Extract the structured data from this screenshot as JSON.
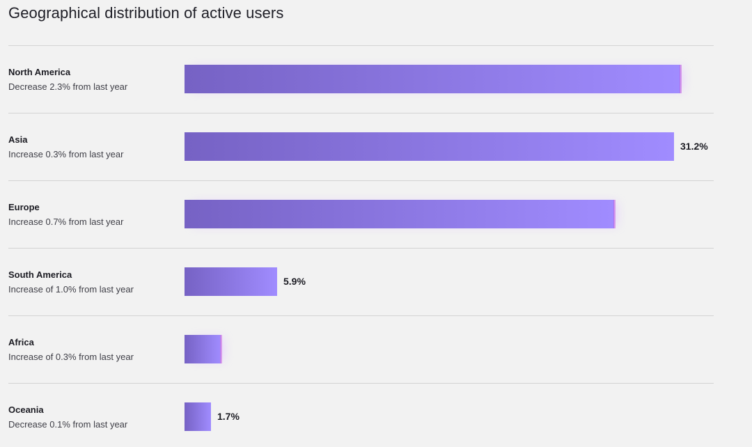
{
  "chart_data": {
    "type": "bar",
    "orientation": "horizontal",
    "title": "Geographical distribution of active users",
    "categories": [
      "North America",
      "Asia",
      "Europe",
      "South America",
      "Africa",
      "Oceania"
    ],
    "subtitles": [
      "Decrease 2.3% from last year",
      "Increase 0.3% from last year",
      "Increase 0.7% from last year",
      "Increase of 1.0% from last year",
      "Increase of 0.3% from last year",
      "Decrease 0.1% from last year"
    ],
    "values": [
      31.6,
      31.2,
      27.4,
      5.9,
      2.3,
      1.7
    ],
    "value_labels": [
      "",
      "31.2%",
      "",
      "5.9%",
      "",
      "1.7%"
    ],
    "xlim": [
      0,
      44.4
    ],
    "grid": false,
    "legend": "none"
  },
  "colors": {
    "bar_start": "#7662c4",
    "bar_end": "#a08cff",
    "divider": "#d3d3d3",
    "background": "#f2f2f2"
  }
}
